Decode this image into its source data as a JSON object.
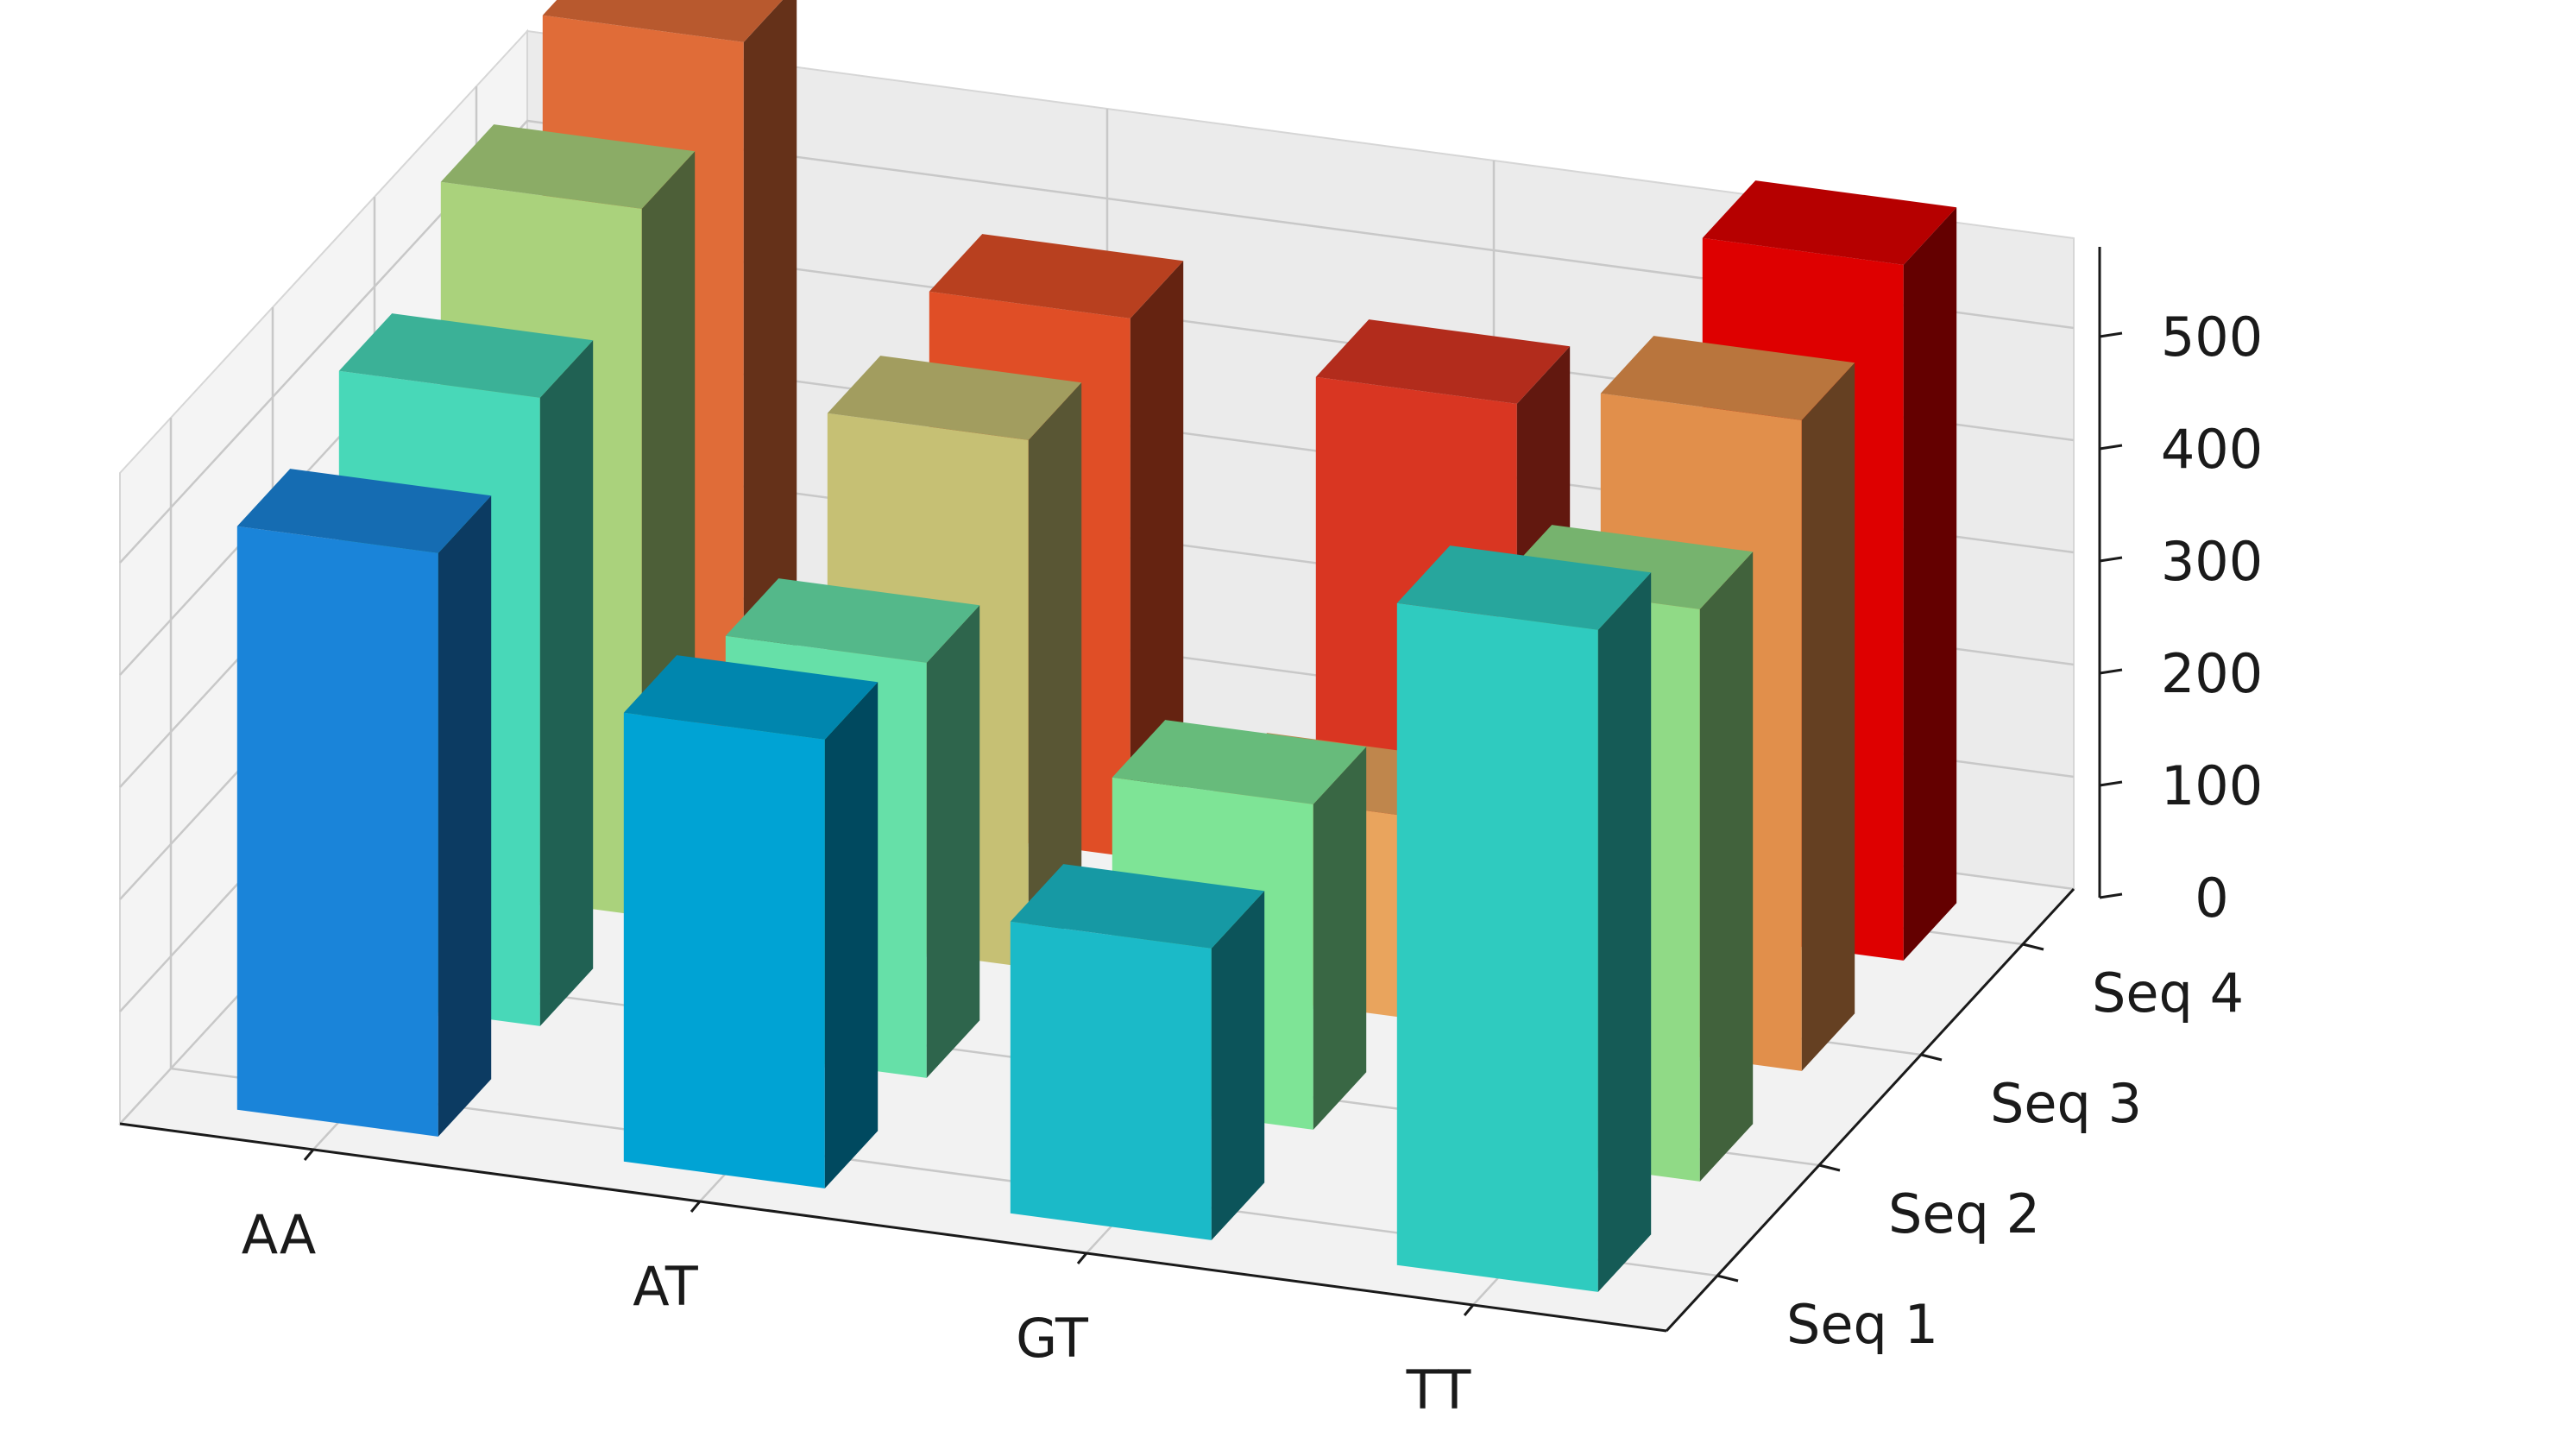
{
  "chart_data": {
    "type": "bar3d",
    "categories": [
      "AA",
      "AT",
      "GT",
      "TT"
    ],
    "sequences": [
      "Seq 1",
      "Seq 2",
      "Seq 3",
      "Seq 4"
    ],
    "series": [
      {
        "name": "Seq 1",
        "values": [
          520,
          400,
          260,
          590
        ],
        "colors": [
          "#1a84d9",
          "#00a3d4",
          "#1bbac8",
          "#2fcbbf"
        ]
      },
      {
        "name": "Seq 2",
        "values": [
          560,
          370,
          290,
          510
        ],
        "colors": [
          "#48d8b8",
          "#66e0a8",
          "#7ee496",
          "#90da86"
        ]
      },
      {
        "name": "Seq 3",
        "values": [
          630,
          470,
          180,
          580
        ],
        "colors": [
          "#aad27c",
          "#c6c074",
          "#e9a45d",
          "#e18f4b"
        ]
      },
      {
        "name": "Seq 4",
        "values": [
          680,
          480,
          450,
          620
        ],
        "colors": [
          "#e06c38",
          "#e04e26",
          "#d93622",
          "#de0000"
        ]
      }
    ],
    "z_ticks": [
      0,
      100,
      200,
      300,
      400,
      500
    ],
    "zlim": [
      0,
      580
    ],
    "title": "",
    "xlabel": "",
    "ylabel": "",
    "zlabel": ""
  }
}
